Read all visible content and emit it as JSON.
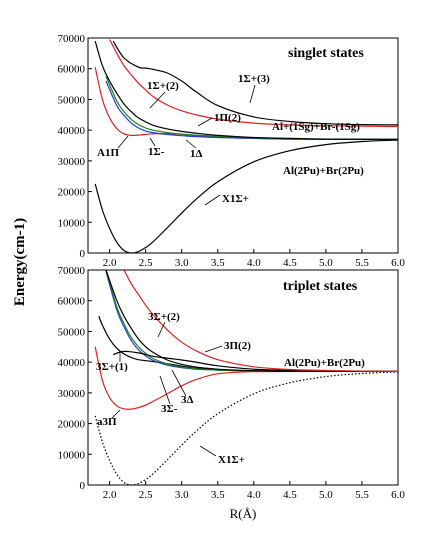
{
  "chart_data": [
    {
      "type": "line",
      "title": "singlet states",
      "xlabel": "",
      "ylabel": "",
      "xlim": [
        1.7,
        6.0
      ],
      "ylim": [
        0,
        70000
      ],
      "xticks": [
        "2.0",
        "2.5",
        "3.0",
        "3.5",
        "4.0",
        "4.5",
        "5.0",
        "5.5",
        "6.0"
      ],
      "yticks": [
        "0",
        "10000",
        "20000",
        "30000",
        "40000",
        "50000",
        "60000",
        "70000"
      ],
      "asymptote_labels": [
        "Al+(1Sg)+Br-(1Sg)",
        "Al(2Pu)+Br(2Pu)"
      ],
      "series": [
        {
          "label": "X1Σ+",
          "color": "#000000",
          "dash": "solid",
          "x": [
            1.8,
            1.9,
            2.0,
            2.1,
            2.2,
            2.3,
            2.4,
            2.5,
            2.6,
            2.8,
            3.0,
            3.2,
            3.5,
            4.0,
            4.5,
            5.0,
            5.5,
            6.0
          ],
          "y": [
            22500,
            14000,
            8000,
            3500,
            800,
            0,
            500,
            1800,
            3600,
            8200,
            13000,
            17500,
            23200,
            29700,
            33300,
            35300,
            36300,
            36800
          ]
        },
        {
          "label": "A1Π",
          "color": "#e02020",
          "dash": "solid",
          "x": [
            1.8,
            1.9,
            2.0,
            2.1,
            2.2,
            2.3,
            2.4,
            2.5,
            2.6,
            2.8,
            3.0,
            3.2,
            3.5,
            4.0,
            4.5,
            5.0,
            6.0
          ],
          "y": [
            60500,
            50000,
            44000,
            40500,
            38800,
            38300,
            38400,
            38600,
            38800,
            38900,
            38600,
            38200,
            37800,
            37300,
            37100,
            37000,
            37000
          ]
        },
        {
          "label": "1Σ-",
          "color": "#2040d0",
          "dash": "solid",
          "x": [
            1.95,
            2.1,
            2.2,
            2.3,
            2.4,
            2.5,
            2.6,
            2.8,
            3.0,
            3.2,
            3.5,
            4.0,
            4.5,
            5.0,
            6.0
          ],
          "y": [
            56000,
            48000,
            44800,
            42300,
            40700,
            39700,
            39200,
            38600,
            38200,
            37900,
            37600,
            37300,
            37100,
            37000,
            37000
          ]
        },
        {
          "label": "1Δ",
          "color": "#208020",
          "dash": "solid",
          "x": [
            1.95,
            2.1,
            2.2,
            2.3,
            2.4,
            2.5,
            2.6,
            2.8,
            3.0,
            3.2,
            3.5,
            4.0,
            4.5,
            5.0,
            6.0
          ],
          "y": [
            57500,
            49500,
            46000,
            43500,
            41800,
            40700,
            40000,
            39200,
            38700,
            38400,
            38000,
            37500,
            37200,
            37050,
            37000
          ]
        },
        {
          "label": "1Σ+(2)",
          "color": "#000000",
          "dash": "solid",
          "x": [
            1.8,
            1.9,
            2.0,
            2.1,
            2.2,
            2.3,
            2.4,
            2.6,
            2.8,
            3.0,
            3.2,
            3.5,
            4.0,
            4.5,
            5.0,
            6.0
          ],
          "y": [
            69000,
            61000,
            56000,
            52000,
            48500,
            46000,
            44000,
            41600,
            40400,
            39600,
            39000,
            38300,
            37600,
            37300,
            37100,
            37000
          ]
        },
        {
          "label": "1Π(2)",
          "color": "#e02020",
          "dash": "solid",
          "x": [
            2.0,
            2.1,
            2.2,
            2.3,
            2.4,
            2.6,
            2.8,
            3.0,
            3.2,
            3.5,
            4.0,
            4.5,
            5.0,
            5.5,
            6.0
          ],
          "y": [
            69500,
            65000,
            61000,
            58000,
            55300,
            51000,
            48200,
            46300,
            45000,
            43600,
            42300,
            41700,
            41400,
            41300,
            41200
          ]
        },
        {
          "label": "1Σ+(3)",
          "color": "#000000",
          "dash": "solid",
          "x": [
            2.05,
            2.2,
            2.4,
            2.5,
            2.6,
            2.8,
            3.0,
            3.2,
            3.5,
            4.0,
            4.5,
            5.0,
            5.5,
            6.0
          ],
          "y": [
            69000,
            63500,
            60500,
            60200,
            59800,
            58600,
            56000,
            52500,
            48000,
            44300,
            42800,
            42100,
            41800,
            41700
          ]
        }
      ]
    },
    {
      "type": "line",
      "title": "triplet states",
      "xlabel": "R(Å)",
      "ylabel": "Energy(cm-1)",
      "xlim": [
        1.7,
        6.0
      ],
      "ylim": [
        0,
        70000
      ],
      "xticks": [
        "2.0",
        "2.5",
        "3.0",
        "3.5",
        "4.0",
        "4.5",
        "5.0",
        "5.5",
        "6.0"
      ],
      "yticks": [
        "0",
        "10000",
        "20000",
        "30000",
        "40000",
        "50000",
        "60000",
        "70000"
      ],
      "asymptote_labels": [
        "Al(2Pu)+Br(2Pu)"
      ],
      "series": [
        {
          "label": "X1Σ+",
          "color": "#000000",
          "dash": "dotted",
          "x": [
            1.8,
            1.9,
            2.0,
            2.1,
            2.2,
            2.3,
            2.4,
            2.5,
            2.6,
            2.8,
            3.0,
            3.2,
            3.5,
            4.0,
            4.5,
            5.0,
            5.5,
            6.0
          ],
          "y": [
            22500,
            14000,
            8000,
            3500,
            800,
            0,
            500,
            1800,
            3600,
            8200,
            13000,
            17500,
            23200,
            29700,
            33300,
            35300,
            36300,
            36800
          ]
        },
        {
          "label": "a3Π",
          "color": "#e02020",
          "dash": "solid",
          "x": [
            1.8,
            1.9,
            2.0,
            2.1,
            2.2,
            2.3,
            2.4,
            2.5,
            2.6,
            2.8,
            3.0,
            3.2,
            3.5,
            4.0,
            5.0,
            6.0
          ],
          "y": [
            45000,
            34000,
            28500,
            25800,
            24800,
            24700,
            25200,
            26000,
            27200,
            29700,
            32300,
            34300,
            36200,
            36900,
            37000,
            37000
          ]
        },
        {
          "label": "3Σ+(1)",
          "color": "#000000",
          "dash": "solid",
          "x": [
            1.85,
            1.9,
            2.0,
            2.1,
            2.2,
            2.3,
            2.4,
            2.6,
            2.8,
            3.0,
            3.2,
            3.5,
            4.0,
            4.5,
            5.0,
            6.0
          ],
          "y": [
            55000,
            52000,
            47500,
            44500,
            42700,
            41500,
            40800,
            40200,
            39500,
            38700,
            38000,
            37500,
            37200,
            37050,
            37000,
            37000
          ]
        },
        {
          "label": "3Σ-",
          "color": "#2040d0",
          "dash": "solid",
          "x": [
            1.95,
            2.1,
            2.2,
            2.3,
            2.4,
            2.5,
            2.6,
            2.8,
            3.0,
            3.2,
            3.5,
            4.0,
            4.5,
            5.0,
            6.0
          ],
          "y": [
            69500,
            57000,
            51500,
            47000,
            44000,
            42000,
            40600,
            39000,
            38200,
            37700,
            37400,
            37150,
            37050,
            37000,
            37000
          ]
        },
        {
          "label": "3Δ",
          "color": "#208020",
          "dash": "solid",
          "x": [
            1.95,
            2.1,
            2.2,
            2.3,
            2.4,
            2.5,
            2.6,
            2.8,
            3.0,
            3.2,
            3.5,
            4.0,
            4.5,
            5.0,
            6.0
          ],
          "y": [
            70000,
            58000,
            52500,
            48000,
            45000,
            42800,
            41200,
            39400,
            38400,
            37800,
            37400,
            37150,
            37050,
            37000,
            37000
          ]
        },
        {
          "label": "3Σ+(2)",
          "color": "#000000",
          "dash": "solid",
          "x": [
            1.95,
            2.1,
            2.2,
            2.3,
            2.4,
            2.5,
            2.6,
            2.8,
            3.0,
            3.2,
            3.5,
            4.0,
            4.5,
            5.0,
            6.0
          ],
          "y": [
            70000,
            60000,
            55000,
            51000,
            47500,
            45000,
            43200,
            40700,
            39300,
            38400,
            37700,
            37200,
            37050,
            37000,
            37000
          ]
        },
        {
          "label": "3Π(2)",
          "color": "#000000",
          "dash": "solid",
          "x": [
            2.05,
            2.2,
            2.4,
            2.5,
            2.6,
            2.8,
            3.0,
            3.2,
            3.5,
            4.0,
            4.5,
            5.0,
            6.0
          ],
          "y": [
            42500,
            43500,
            43000,
            42500,
            41900,
            41300,
            40700,
            40000,
            38800,
            37700,
            37300,
            37100,
            37000
          ]
        },
        {
          "label": "3Π(2)",
          "color": "#e02020",
          "dash": "solid",
          "x": [
            2.2,
            2.3,
            2.4,
            2.5,
            2.6,
            2.8,
            3.0,
            3.2,
            3.5,
            4.0,
            4.5,
            5.0,
            5.5,
            6.0
          ],
          "y": [
            70000,
            65500,
            62000,
            58500,
            55500,
            50500,
            46500,
            43700,
            40800,
            38500,
            37600,
            37300,
            37100,
            37000
          ]
        }
      ]
    }
  ],
  "annotations": {
    "top": {
      "sigma_plus_2": "1Σ+(2)",
      "sigma_plus_3": "1Σ+(3)",
      "pi_2": "1Π(2)",
      "a1pi": "A1Π",
      "sigma_minus": "1Σ-",
      "delta": "1Δ",
      "x1sigma": "X1Σ+",
      "asym_ionic": "Al+(1Sg)+Br-(1Sg)",
      "asym_neutral": "Al(2Pu)+Br(2Pu)"
    },
    "bottom": {
      "sigma_plus_2": "3Σ+(2)",
      "pi_2": "3Π(2)",
      "sigma_plus_1": "3Σ+(1)",
      "a3pi": "a3Π",
      "sigma_minus": "3Σ-",
      "delta": "3Δ",
      "x1sigma": "X1Σ+",
      "asym_neutral": "Al(2Pu)+Br(2Pu)"
    }
  }
}
